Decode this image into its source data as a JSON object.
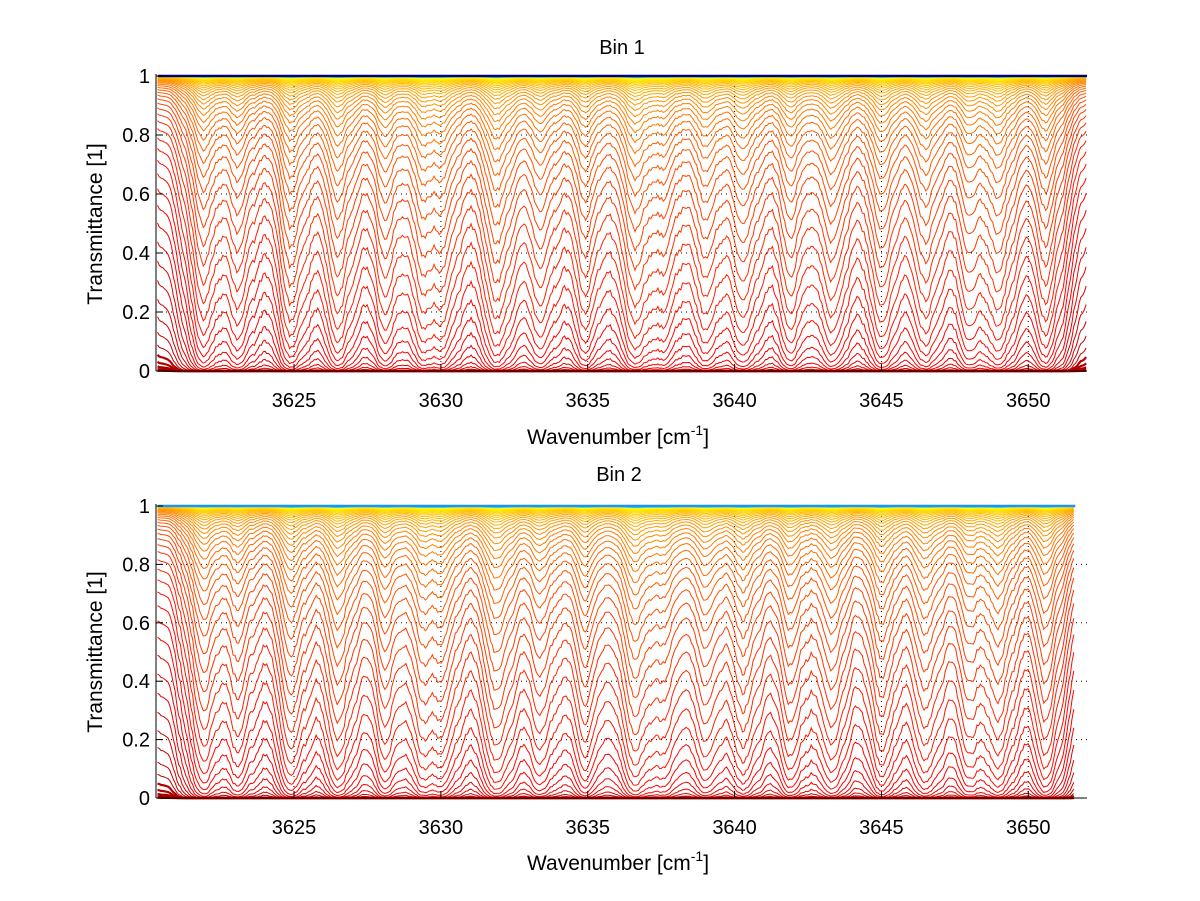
{
  "figure": {
    "background": "#ffffff"
  },
  "chart_data": [
    {
      "type": "line",
      "title": "Bin 1",
      "xlabel": "Wavenumber [cm",
      "xlabel_sup": "-1",
      "xlabel_close": "]",
      "ylabel": "Transmittance [1]",
      "xlim": [
        3620.3,
        3652.0
      ],
      "ylim": [
        0,
        1
      ],
      "x_ticks": [
        3625,
        3630,
        3635,
        3640,
        3645,
        3650
      ],
      "x_tick_labels": [
        "3625",
        "3630",
        "3635",
        "3640",
        "3645",
        "3650"
      ],
      "y_ticks": [
        0,
        0.2,
        0.4,
        0.6,
        0.8,
        1
      ],
      "y_tick_labels": [
        "0",
        "0.2",
        "0.4",
        "0.6",
        "0.8",
        "1"
      ],
      "grid": true,
      "colormap": "jet (one curve per optical depth level; deep red = opaque, dark blue = transparent)",
      "n_series": 60,
      "x_end": 3652.0,
      "top_line_color": "#00007f",
      "absorption_lines": [
        {
          "center": 3621.9,
          "strength": 0.9
        },
        {
          "center": 3623.1,
          "strength": 0.7
        },
        {
          "center": 3624.9,
          "strength": 1.1
        },
        {
          "center": 3626.5,
          "strength": 1.2
        },
        {
          "center": 3628.1,
          "strength": 0.9
        },
        {
          "center": 3629.4,
          "strength": 1.0
        },
        {
          "center": 3630.1,
          "strength": 0.8
        },
        {
          "center": 3631.9,
          "strength": 1.3
        },
        {
          "center": 3633.4,
          "strength": 0.8
        },
        {
          "center": 3634.9,
          "strength": 0.9
        },
        {
          "center": 3636.6,
          "strength": 1.3
        },
        {
          "center": 3637.6,
          "strength": 0.7
        },
        {
          "center": 3639.0,
          "strength": 0.9
        },
        {
          "center": 3640.3,
          "strength": 1.0
        },
        {
          "center": 3641.9,
          "strength": 0.9
        },
        {
          "center": 3643.3,
          "strength": 1.0
        },
        {
          "center": 3645.0,
          "strength": 1.1
        },
        {
          "center": 3646.5,
          "strength": 1.0
        },
        {
          "center": 3648.0,
          "strength": 0.8
        },
        {
          "center": 3649.0,
          "strength": 1.1
        },
        {
          "center": 3650.6,
          "strength": 0.9
        }
      ]
    },
    {
      "type": "line",
      "title": "Bin 2",
      "xlabel": "Wavenumber [cm",
      "xlabel_sup": "-1",
      "xlabel_close": "]",
      "ylabel": "Transmittance [1]",
      "xlim": [
        3620.3,
        3652.0
      ],
      "ylim": [
        0,
        1
      ],
      "x_ticks": [
        3625,
        3630,
        3635,
        3640,
        3645,
        3650
      ],
      "x_tick_labels": [
        "3625",
        "3630",
        "3635",
        "3640",
        "3645",
        "3650"
      ],
      "y_ticks": [
        0,
        0.2,
        0.4,
        0.6,
        0.8,
        1
      ],
      "y_tick_labels": [
        "0",
        "0.2",
        "0.4",
        "0.6",
        "0.8",
        "1"
      ],
      "grid": true,
      "colormap": "jet (one curve per optical depth level; deep red = opaque, light blue = transparent)",
      "n_series": 60,
      "x_end": 3651.6,
      "top_line_color": "#1e90ff",
      "absorption_lines": [
        {
          "center": 3621.9,
          "strength": 0.9
        },
        {
          "center": 3623.1,
          "strength": 0.7
        },
        {
          "center": 3624.9,
          "strength": 1.1
        },
        {
          "center": 3626.5,
          "strength": 1.2
        },
        {
          "center": 3628.1,
          "strength": 0.9
        },
        {
          "center": 3629.4,
          "strength": 1.0
        },
        {
          "center": 3630.1,
          "strength": 0.8
        },
        {
          "center": 3631.9,
          "strength": 1.3
        },
        {
          "center": 3633.4,
          "strength": 0.8
        },
        {
          "center": 3634.9,
          "strength": 0.9
        },
        {
          "center": 3636.6,
          "strength": 1.3
        },
        {
          "center": 3637.6,
          "strength": 0.7
        },
        {
          "center": 3639.0,
          "strength": 0.9
        },
        {
          "center": 3640.3,
          "strength": 1.0
        },
        {
          "center": 3641.9,
          "strength": 0.9
        },
        {
          "center": 3643.3,
          "strength": 1.0
        },
        {
          "center": 3645.0,
          "strength": 1.1
        },
        {
          "center": 3646.5,
          "strength": 1.0
        },
        {
          "center": 3648.0,
          "strength": 0.8
        },
        {
          "center": 3649.0,
          "strength": 1.1
        },
        {
          "center": 3650.6,
          "strength": 1.0
        }
      ]
    }
  ]
}
